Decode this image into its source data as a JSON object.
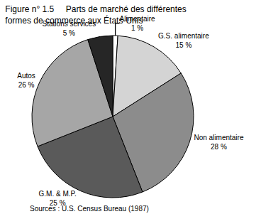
{
  "chart_data": {
    "type": "pie",
    "title": [
      "Figure n° 1.5     Parts de marché des différentes",
      "formes de commerce aux États-Unis"
    ],
    "source": "Sources : U.S. Census Bureau (1987)",
    "categories": [
      "Alimentaire",
      "G.S. alimentaire",
      "Non alimentaire",
      "G.M. & M.P.",
      "Autos",
      "Stations services"
    ],
    "values": [
      1,
      15,
      28,
      25,
      26,
      5
    ],
    "value_labels": [
      "1 %",
      "15 %",
      "28 %",
      "25 %",
      "26 %",
      "5 %"
    ],
    "colors": [
      "#ffffff",
      "#d4d4d4",
      "#8c8c8c",
      "#5a5a5a",
      "#a6a6a6",
      "#262626"
    ],
    "data_labels": true
  }
}
